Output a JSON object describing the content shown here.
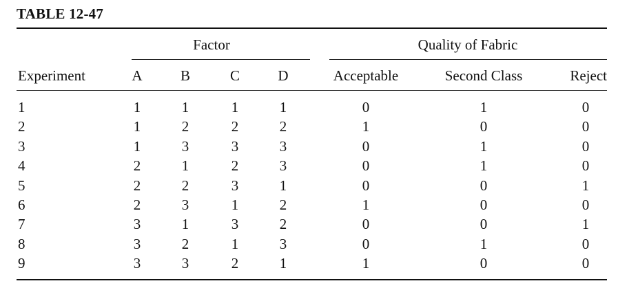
{
  "table": {
    "title": "TABLE 12-47",
    "group_headers": {
      "factor": "Factor",
      "quality": "Quality of Fabric"
    },
    "columns": [
      "Experiment",
      "A",
      "B",
      "C",
      "D",
      "Acceptable",
      "Second Class",
      "Reject"
    ],
    "rows": [
      [
        "1",
        "1",
        "1",
        "1",
        "1",
        "0",
        "1",
        "0"
      ],
      [
        "2",
        "1",
        "2",
        "2",
        "2",
        "1",
        "0",
        "0"
      ],
      [
        "3",
        "1",
        "3",
        "3",
        "3",
        "0",
        "1",
        "0"
      ],
      [
        "4",
        "2",
        "1",
        "2",
        "3",
        "0",
        "1",
        "0"
      ],
      [
        "5",
        "2",
        "2",
        "3",
        "1",
        "0",
        "0",
        "1"
      ],
      [
        "6",
        "2",
        "3",
        "1",
        "2",
        "1",
        "0",
        "0"
      ],
      [
        "7",
        "3",
        "1",
        "3",
        "2",
        "0",
        "0",
        "1"
      ],
      [
        "8",
        "3",
        "2",
        "1",
        "3",
        "0",
        "1",
        "0"
      ],
      [
        "9",
        "3",
        "3",
        "2",
        "1",
        "1",
        "0",
        "0"
      ]
    ]
  }
}
